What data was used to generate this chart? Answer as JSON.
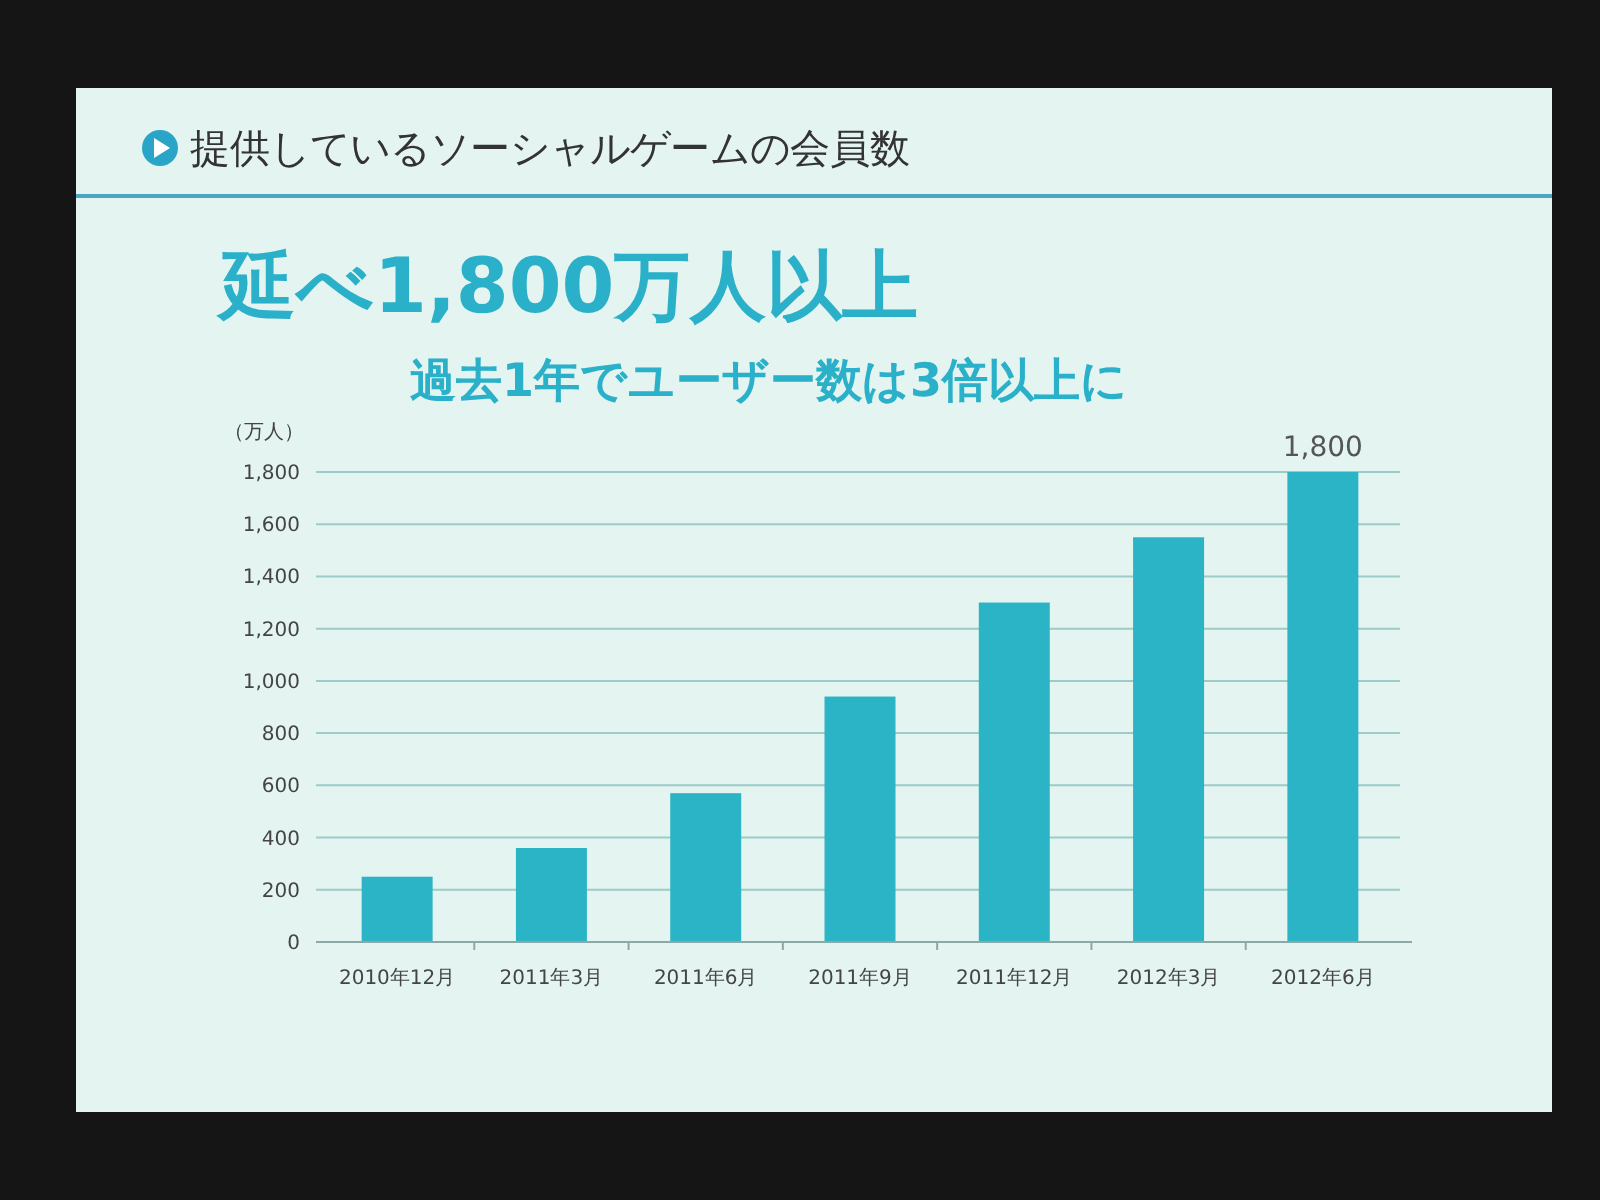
{
  "chart_data": {
    "type": "bar",
    "title": "提供しているソーシャルゲームの会員数",
    "subtitle": "延べ1,800万人以上",
    "annotations": [
      "過去1年でユーザー数は3倍以上に"
    ],
    "ylabel": "（万人）",
    "categories": [
      "2010年12月",
      "2011年3月",
      "2011年6月",
      "2011年9月",
      "2011年12月",
      "2012年3月",
      "2012年6月"
    ],
    "values": [
      250,
      360,
      570,
      940,
      1300,
      1550,
      1800
    ],
    "color": "#2bb3c6",
    "value_labels": [
      null,
      null,
      null,
      null,
      null,
      null,
      "1,800"
    ],
    "ylim": [
      0,
      1800
    ],
    "yticks": [
      0,
      200,
      400,
      600,
      800,
      {
        "value": 1000,
        "label": "1,000"
      },
      {
        "value": 1200,
        "label": "1,200"
      },
      {
        "value": 1400,
        "label": "1,400"
      },
      {
        "value": 1600,
        "label": "1,600"
      },
      {
        "value": 1800,
        "label": "1,800"
      }
    ],
    "grid": "y"
  }
}
